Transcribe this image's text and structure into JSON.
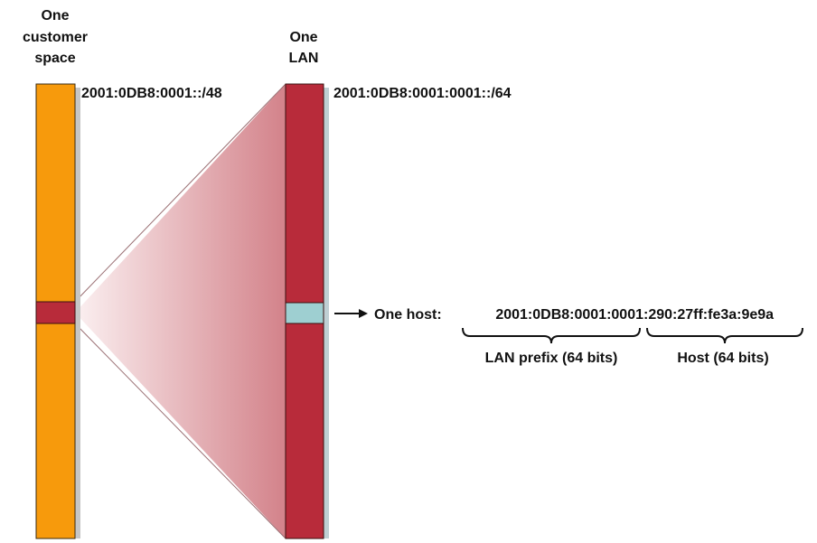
{
  "labels": {
    "customer_space_line1": "One",
    "customer_space_line2": "customer",
    "customer_space_line3": "space",
    "lan_line1": "One",
    "lan_line2": "LAN",
    "customer_prefix": "2001:0DB8:0001::/48",
    "lan_prefix": "2001:0DB8:0001:0001::/64",
    "host_label": "One host:",
    "host_lan_part": "2001:0DB8:0001:0001",
    "host_host_part": ":290:27ff:fe3a:9e9a",
    "lan_prefix_brace": "LAN prefix (64 bits)",
    "host_brace": "Host (64 bits)"
  },
  "colors": {
    "customer_space": "#F79A0C",
    "lan": "#B82B3A",
    "host": "#9ECFD1",
    "shadow": "#C6C6C6",
    "fan_light": "#FBEDEE",
    "fan_dark": "#D4848C"
  }
}
